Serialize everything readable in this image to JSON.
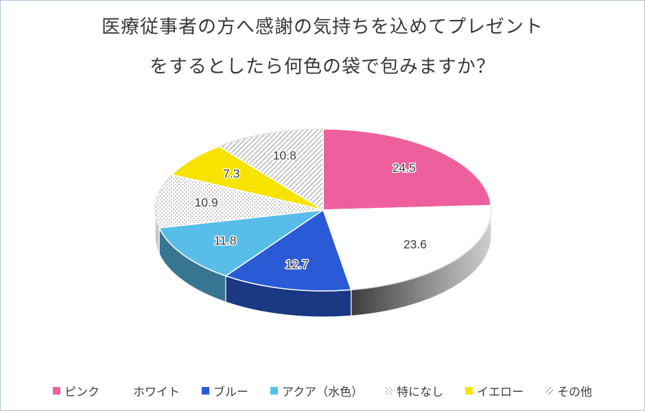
{
  "title": {
    "line1": "医療従事者の方へ感謝の気持ちを込めてプレゼント",
    "line2": "をするとしたら何色の袋で包みますか？"
  },
  "chart_data": {
    "type": "pie",
    "style": "3d",
    "start_angle_deg": 0,
    "direction": "clockwise",
    "title": "医療従事者の方へ感謝の気持ちを込めてプレゼントをするとしたら何色の袋で包みますか？",
    "categories": [
      "ピンク",
      "ホワイト",
      "ブルー",
      "アクア（水色）",
      "特になし",
      "イエロー",
      "その他"
    ],
    "values": [
      24.5,
      23.6,
      12.7,
      11.8,
      10.9,
      7.3,
      10.8
    ],
    "labels": [
      "24.5",
      "23.6",
      "12.7",
      "11.8",
      "10.9",
      "7.3",
      "10.8"
    ],
    "colors": [
      "#ee5f9e",
      "#ffffff",
      "#2a5ad5",
      "#58bde9",
      "pattern:dots",
      "#f6e400",
      "pattern:diag"
    ],
    "legend_position": "bottom",
    "background_color": "#ffffff",
    "border_color": "#aac3dd"
  }
}
